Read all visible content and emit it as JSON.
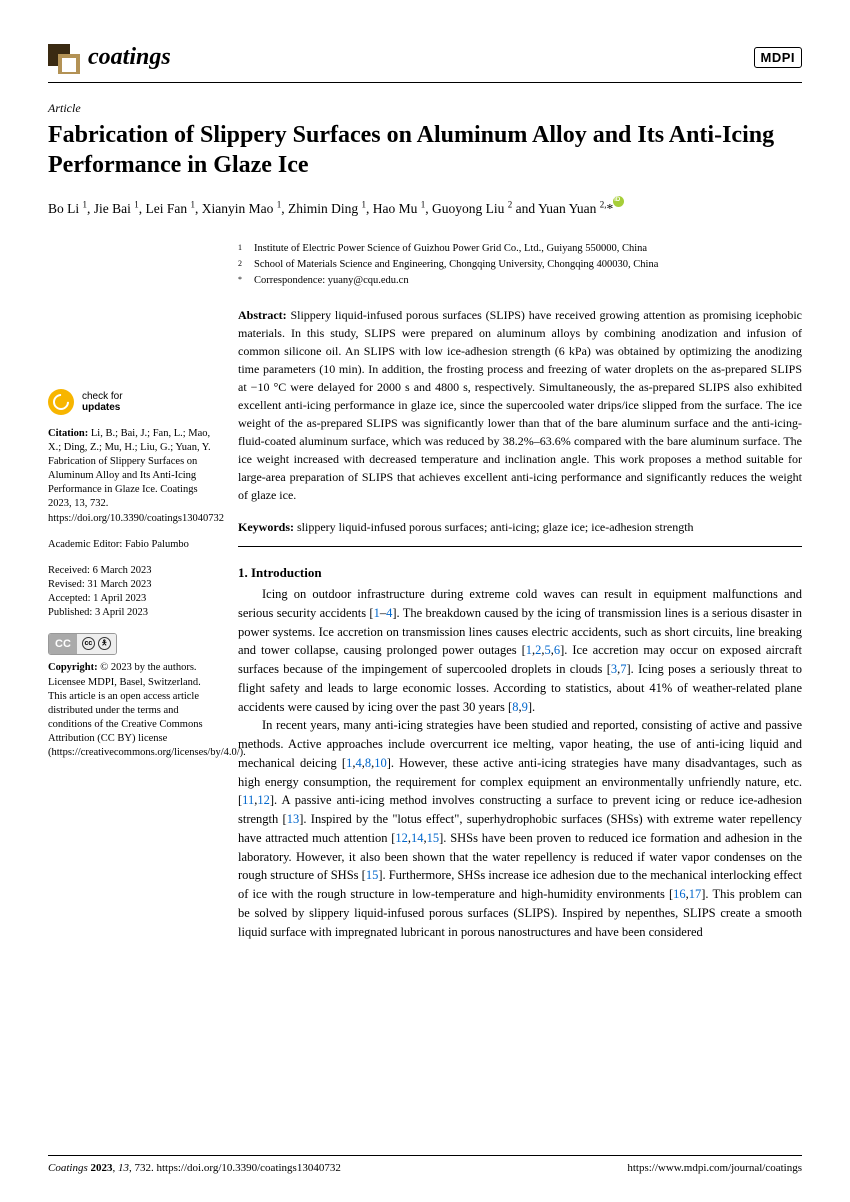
{
  "journal": {
    "name": "coatings",
    "publisher_badge": "MDPI",
    "logo_colors": {
      "outer": "#3a2a12",
      "inner": "#b39255"
    }
  },
  "article": {
    "type": "Article",
    "title": "Fabrication of Slippery Surfaces on Aluminum Alloy and Its Anti-Icing Performance in Glaze Ice",
    "authors_html": "Bo Li <sup>1</sup>, Jie Bai <sup>1</sup>, Lei Fan <sup>1</sup>, Xianyin Mao <sup>1</sup>, Zhimin Ding <sup>1</sup>, Hao Mu <sup>1</sup>, Guoyong Liu <sup>2</sup> and Yuan Yuan <sup>2,</sup>*",
    "affiliations": [
      {
        "marker": "1",
        "text": "Institute of Electric Power Science of Guizhou Power Grid Co., Ltd., Guiyang 550000, China"
      },
      {
        "marker": "2",
        "text": "School of Materials Science and Engineering, Chongqing University, Chongqing 400030, China"
      },
      {
        "marker": "*",
        "text": "Correspondence: yuany@cqu.edu.cn"
      }
    ],
    "abstract_label": "Abstract:",
    "abstract": "Slippery liquid-infused porous surfaces (SLIPS) have received growing attention as promising icephobic materials. In this study, SLIPS were prepared on aluminum alloys by combining anodization and infusion of common silicone oil. An SLIPS with low ice-adhesion strength (6 kPa) was obtained by optimizing the anodizing time parameters (10 min). In addition, the frosting process and freezing of water droplets on the as-prepared SLIPS at −10 °C were delayed for 2000 s and 4800 s, respectively. Simultaneously, the as-prepared SLIPS also exhibited excellent anti-icing performance in glaze ice, since the supercooled water drips/ice slipped from the surface. The ice weight of the as-prepared SLIPS was significantly lower than that of the bare aluminum surface and the anti-icing-fluid-coated aluminum surface, which was reduced by 38.2%–63.6% compared with the bare aluminum surface. The ice weight increased with decreased temperature and inclination angle. This work proposes a method suitable for large-area preparation of SLIPS that achieves excellent anti-icing performance and significantly reduces the weight of glaze ice.",
    "keywords_label": "Keywords:",
    "keywords": "slippery liquid-infused porous surfaces; anti-icing; glaze ice; ice-adhesion strength"
  },
  "section1": {
    "title": "1. Introduction",
    "para1": "Icing on outdoor infrastructure during extreme cold waves can result in equipment malfunctions and serious security accidents [<span class='ref-link'>1</span>–<span class='ref-link'>4</span>]. The breakdown caused by the icing of transmission lines is a serious disaster in power systems. Ice accretion on transmission lines causes electric accidents, such as short circuits, line breaking and tower collapse, causing prolonged power outages [<span class='ref-link'>1</span>,<span class='ref-link'>2</span>,<span class='ref-link'>5</span>,<span class='ref-link'>6</span>]. Ice accretion may occur on exposed aircraft surfaces because of the impingement of supercooled droplets in clouds [<span class='ref-link'>3</span>,<span class='ref-link'>7</span>]. Icing poses a seriously threat to flight safety and leads to large economic losses. According to statistics, about 41% of weather-related plane accidents were caused by icing over the past 30 years [<span class='ref-link'>8</span>,<span class='ref-link'>9</span>].",
    "para2": "In recent years, many anti-icing strategies have been studied and reported, consisting of active and passive methods. Active approaches include overcurrent ice melting, vapor heating, the use of anti-icing liquid and mechanical deicing [<span class='ref-link'>1</span>,<span class='ref-link'>4</span>,<span class='ref-link'>8</span>,<span class='ref-link'>10</span>]. However, these active anti-icing strategies have many disadvantages, such as high energy consumption, the requirement for complex equipment an environmentally unfriendly nature, etc. [<span class='ref-link'>11</span>,<span class='ref-link'>12</span>]. A passive anti-icing method involves constructing a surface to prevent icing or reduce ice-adhesion strength [<span class='ref-link'>13</span>]. Inspired by the \"lotus effect\", superhydrophobic surfaces (SHSs) with extreme water repellency have attracted much attention [<span class='ref-link'>12</span>,<span class='ref-link'>14</span>,<span class='ref-link'>15</span>]. SHSs have been proven to reduced ice formation and adhesion in the laboratory. However, it also been shown that the water repellency is reduced if water vapor condenses on the rough structure of SHSs [<span class='ref-link'>15</span>]. Furthermore, SHSs increase ice adhesion due to the mechanical interlocking effect of ice with the rough structure in low-temperature and high-humidity environments [<span class='ref-link'>16</span>,<span class='ref-link'>17</span>]. This problem can be solved by slippery liquid-infused porous surfaces (SLIPS). Inspired by nepenthes, SLIPS create a smooth liquid surface with impregnated lubricant in porous nanostructures and have been considered"
  },
  "sidebar": {
    "check_l1": "check for",
    "check_l2": "updates",
    "citation_label": "Citation:",
    "citation": "Li, B.; Bai, J.; Fan, L.; Mao, X.; Ding, Z.; Mu, H.; Liu, G.; Yuan, Y. Fabrication of Slippery Surfaces on Aluminum Alloy and Its Anti-Icing Performance in Glaze Ice. Coatings 2023, 13, 732. https://doi.org/10.3390/coatings13040732",
    "editor_label": "Academic Editor:",
    "editor": "Fabio Palumbo",
    "received": "Received: 6 March 2023",
    "revised": "Revised: 31 March 2023",
    "accepted": "Accepted: 1 April 2023",
    "published": "Published: 3 April 2023",
    "copyright_label": "Copyright:",
    "copyright": "© 2023 by the authors. Licensee MDPI, Basel, Switzerland. This article is an open access article distributed under the terms and conditions of the Creative Commons Attribution (CC BY) license (https://creativecommons.org/licenses/by/4.0/)."
  },
  "footer": {
    "left": "Coatings 2023, 13, 732. https://doi.org/10.3390/coatings13040732",
    "right": "https://www.mdpi.com/journal/coatings"
  }
}
